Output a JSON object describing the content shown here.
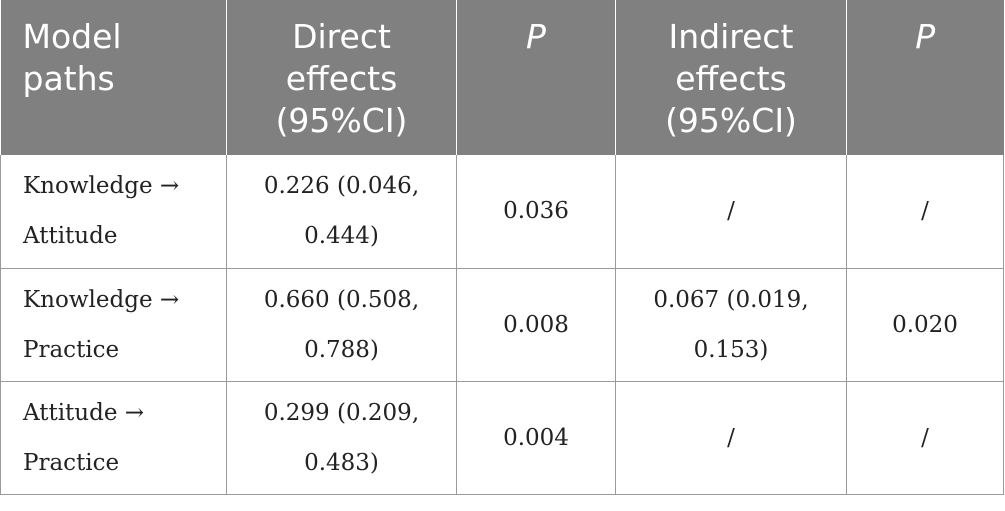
{
  "table": {
    "headers": [
      "Model paths",
      "Direct effects (95%CI)",
      "P",
      "Indirect effects (95%CI)",
      "P"
    ],
    "rows": [
      [
        "Knowledge → Attitude",
        "0.226 (0.046, 0.444)",
        "0.036",
        "/",
        "/"
      ],
      [
        "Knowledge → Practice",
        "0.660 (0.508, 0.788)",
        "0.008",
        "0.067 (0.019, 0.153)",
        "0.020"
      ],
      [
        "Attitude → Practice",
        "0.299 (0.209, 0.483)",
        "0.004",
        "/",
        "/"
      ]
    ]
  }
}
